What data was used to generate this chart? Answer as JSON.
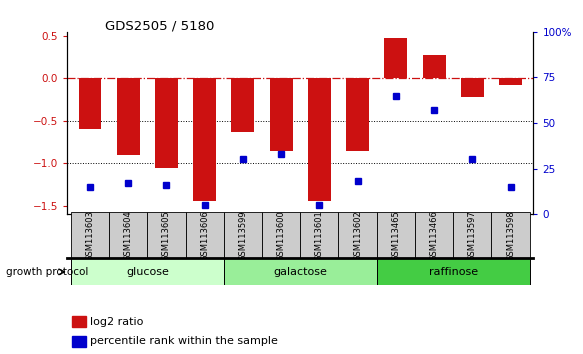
{
  "title": "GDS2505 / 5180",
  "samples": [
    "GSM113603",
    "GSM113604",
    "GSM113605",
    "GSM113606",
    "GSM113599",
    "GSM113600",
    "GSM113601",
    "GSM113602",
    "GSM113465",
    "GSM113466",
    "GSM113597",
    "GSM113598"
  ],
  "log2_ratio": [
    -0.6,
    -0.9,
    -1.05,
    -1.45,
    -0.63,
    -0.85,
    -1.45,
    -0.85,
    0.48,
    0.28,
    -0.22,
    -0.08
  ],
  "percentile_rank": [
    15,
    17,
    16,
    5,
    30,
    33,
    5,
    18,
    65,
    57,
    30,
    15
  ],
  "groups": [
    {
      "label": "glucose",
      "start": 0,
      "end": 4,
      "color": "#ccffcc"
    },
    {
      "label": "galactose",
      "start": 4,
      "end": 8,
      "color": "#99ee99"
    },
    {
      "label": "raffinose",
      "start": 8,
      "end": 12,
      "color": "#44cc44"
    }
  ],
  "bar_color": "#cc1111",
  "dot_color": "#0000cc",
  "ylim_left": [
    -1.6,
    0.55
  ],
  "ylim_right": [
    0,
    100
  ],
  "yticks_left": [
    -1.5,
    -1.0,
    -0.5,
    0.0,
    0.5
  ],
  "yticks_right": [
    0,
    25,
    50,
    75,
    100
  ],
  "hline_y": 0,
  "dotted_lines": [
    -0.5,
    -1.0
  ],
  "growth_protocol_label": "growth protocol",
  "legend_log2": "log2 ratio",
  "legend_pct": "percentile rank within the sample",
  "bar_width": 0.6,
  "label_box_color": "#cccccc",
  "background_color": "#ffffff"
}
